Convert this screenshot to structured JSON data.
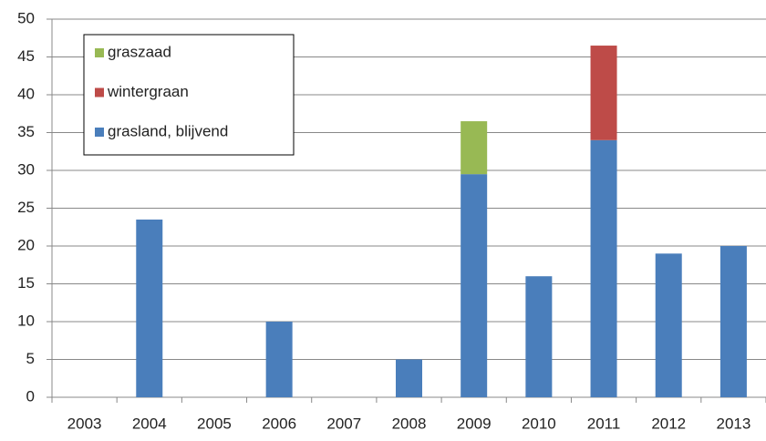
{
  "chart_data": {
    "type": "stacked-bar",
    "categories": [
      "2003",
      "2004",
      "2005",
      "2006",
      "2007",
      "2008",
      "2009",
      "2010",
      "2011",
      "2012",
      "2013"
    ],
    "series": [
      {
        "name": "grasland, blijvend",
        "color": "#4a7ebb",
        "values": [
          0,
          23.5,
          0,
          10,
          0,
          5,
          29.5,
          16,
          34,
          19,
          20
        ]
      },
      {
        "name": "wintergraan",
        "color": "#be4b48",
        "values": [
          0,
          0,
          0,
          0,
          0,
          0,
          0,
          0,
          12.5,
          0,
          0
        ]
      },
      {
        "name": "graszaad",
        "color": "#98b954",
        "values": [
          0,
          0,
          0,
          0,
          0,
          0,
          7,
          0,
          0,
          0,
          0
        ]
      }
    ],
    "ylim": [
      0,
      50
    ],
    "yticks": [
      0,
      5,
      10,
      15,
      20,
      25,
      30,
      35,
      40,
      45,
      50
    ],
    "grid": true
  }
}
